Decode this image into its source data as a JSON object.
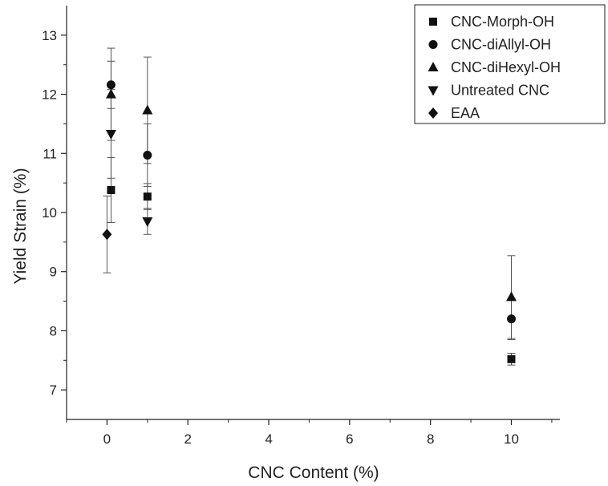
{
  "chart_data": {
    "type": "scatter",
    "xlabel": "CNC Content (%)",
    "ylabel": "Yield Strain (%)",
    "xlim": [
      -1,
      11.2
    ],
    "ylim": [
      6.5,
      13.5
    ],
    "xticks": [
      "0",
      "2",
      "4",
      "6",
      "8",
      "10"
    ],
    "yticks": [
      "7",
      "8",
      "9",
      "10",
      "11",
      "12",
      "13"
    ],
    "legend_position": "top-right",
    "series": [
      {
        "name": "CNC-Morph-OH",
        "marker": "square",
        "x": [
          0.1,
          1,
          10
        ],
        "y": [
          10.38,
          10.27,
          7.52
        ],
        "err": [
          0.55,
          0.22,
          0.1
        ]
      },
      {
        "name": "CNC-diAllyl-OH",
        "marker": "circle",
        "x": [
          0.1,
          1,
          10
        ],
        "y": [
          12.16,
          10.97,
          8.2
        ],
        "err": [
          0.4,
          0.53,
          0.35
        ]
      },
      {
        "name": "CNC-diHexyl-OH",
        "marker": "triangle-up",
        "x": [
          0.1,
          1,
          10
        ],
        "y": [
          12.0,
          11.73,
          8.57
        ],
        "err": [
          0.78,
          0.9,
          0.7
        ]
      },
      {
        "name": "Untreated CNC",
        "marker": "triangle-down",
        "x": [
          0.1,
          1
        ],
        "y": [
          11.33,
          9.85
        ],
        "err": [
          0.75,
          0.22
        ]
      },
      {
        "name": "EAA",
        "marker": "diamond",
        "x": [
          0
        ],
        "y": [
          9.63
        ],
        "err": [
          0.65
        ]
      }
    ]
  }
}
